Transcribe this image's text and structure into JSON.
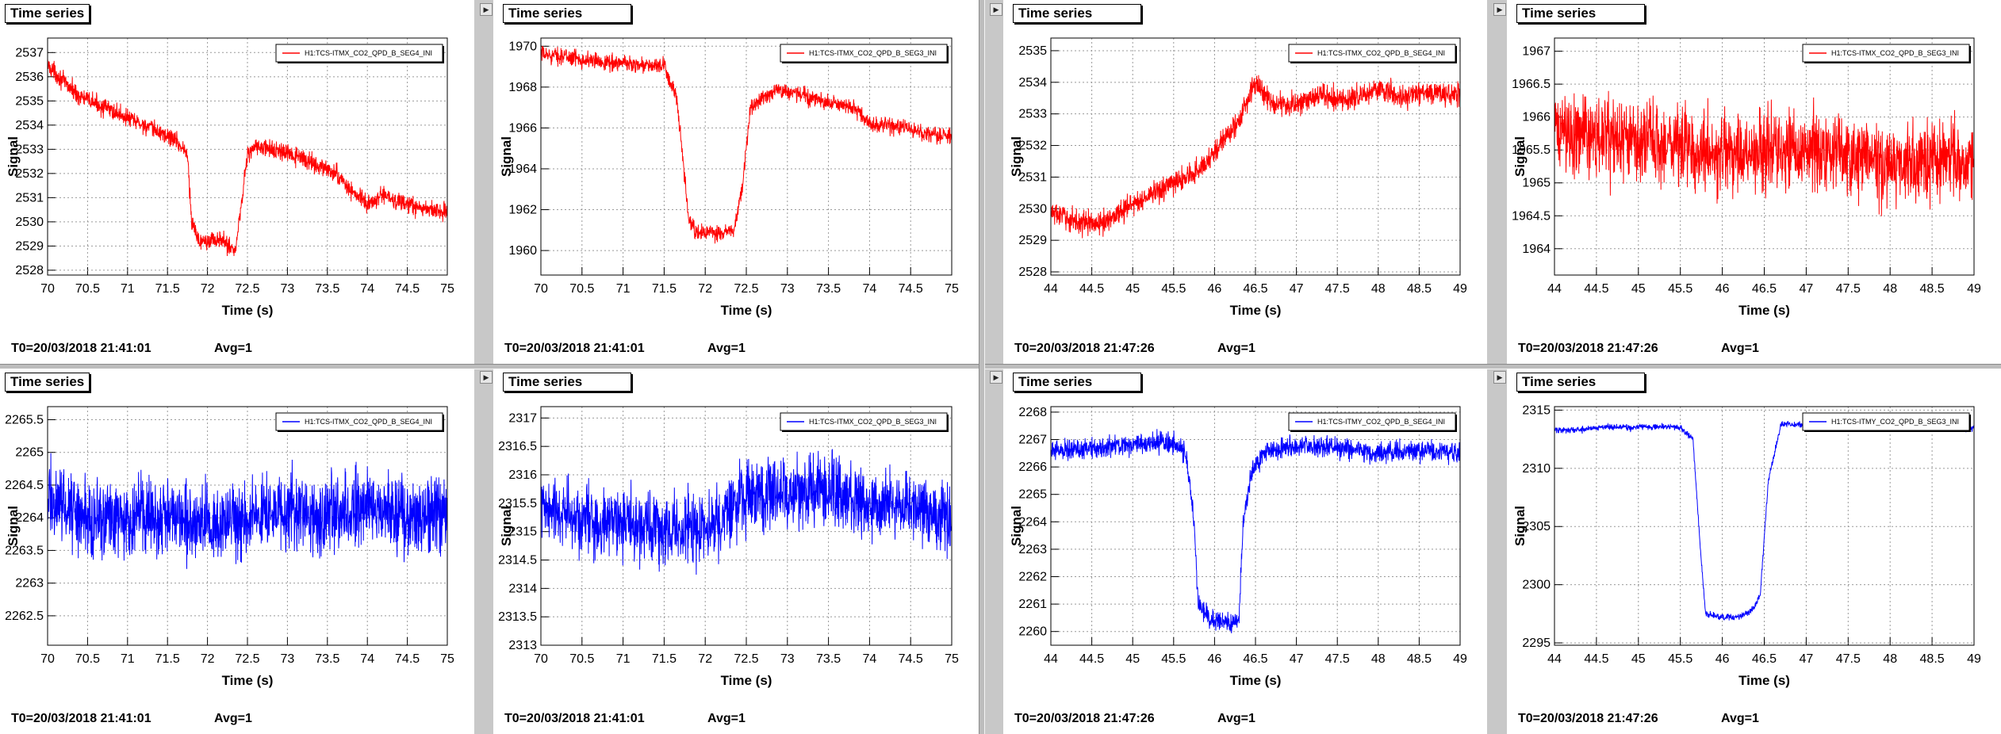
{
  "panel_title": "Time series",
  "colors": {
    "red": "#ff0000",
    "blue": "#0000ff"
  },
  "icons": {
    "expand": "triangle-right-icon"
  },
  "chart_data": [
    {
      "type": "line",
      "title": "Time series",
      "color": "#ff0000",
      "legend": "H1:TCS-ITMX_CO2_QPD_B_SEG4_INI",
      "xlabel": "Time (s)",
      "ylabel": "Signal",
      "xlim": [
        70,
        75
      ],
      "ylim": [
        2527.8,
        2537.6
      ],
      "xticks": [
        "70",
        "70.5",
        "71",
        "71.5",
        "72",
        "72.5",
        "73",
        "73.5",
        "74",
        "74.5",
        "75"
      ],
      "yticks": [
        "2528",
        "2529",
        "2530",
        "2531",
        "2532",
        "2533",
        "2534",
        "2535",
        "2536",
        "2537"
      ],
      "t0": "T0=20/03/2018 21:41:01",
      "avg": "Avg=1",
      "series": [
        {
          "x": [
            70,
            70.2,
            70.4,
            70.6,
            70.8,
            71,
            71.2,
            71.4,
            71.6,
            71.75,
            71.8,
            71.9,
            72,
            72.2,
            72.35,
            72.45,
            72.5,
            72.6,
            72.8,
            73,
            73.2,
            73.4,
            73.6,
            73.8,
            74,
            74.2,
            74.4,
            74.6,
            74.8,
            75
          ],
          "y": [
            2536.5,
            2535.8,
            2535.2,
            2534.9,
            2534.6,
            2534.3,
            2534.0,
            2533.7,
            2533.4,
            2532.8,
            2530,
            2529.2,
            2529.3,
            2529.2,
            2528.8,
            2531.5,
            2532.8,
            2533.1,
            2533.0,
            2532.8,
            2532.6,
            2532.3,
            2532.0,
            2531.3,
            2530.7,
            2531.1,
            2530.8,
            2530.6,
            2530.5,
            2530.4
          ],
          "noise": 0.55
        }
      ]
    },
    {
      "type": "line",
      "title": "Time series",
      "color": "#ff0000",
      "legend": "H1:TCS-ITMX_CO2_QPD_B_SEG3_INI",
      "xlabel": "Time (s)",
      "ylabel": "Signal",
      "xlim": [
        70,
        75
      ],
      "ylim": [
        1958.8,
        1970.4
      ],
      "xticks": [
        "70",
        "70.5",
        "71",
        "71.5",
        "72",
        "72.5",
        "73",
        "73.5",
        "74",
        "74.5",
        "75"
      ],
      "yticks": [
        "1960",
        "1962",
        "1964",
        "1966",
        "1968",
        "1970"
      ],
      "t0": "T0=20/03/2018 21:41:01",
      "avg": "Avg=1",
      "series": [
        {
          "x": [
            70,
            70.3,
            70.6,
            70.9,
            71.2,
            71.5,
            71.65,
            71.8,
            71.9,
            72,
            72.2,
            72.35,
            72.45,
            72.55,
            72.7,
            72.9,
            73.2,
            73.5,
            73.8,
            74,
            74.3,
            74.6,
            75
          ],
          "y": [
            1969.6,
            1969.5,
            1969.3,
            1969.2,
            1969.1,
            1969.0,
            1967.5,
            1961.5,
            1960.8,
            1960.9,
            1960.8,
            1961,
            1963,
            1967.0,
            1967.5,
            1967.9,
            1967.6,
            1967.2,
            1967.0,
            1966.2,
            1966.1,
            1965.8,
            1965.6
          ],
          "noise": 0.6
        }
      ]
    },
    {
      "type": "line",
      "title": "Time series",
      "color": "#ff0000",
      "legend": "H1:TCS-ITMX_CO2_QPD_B_SEG4_INI",
      "xlabel": "Time (s)",
      "ylabel": "Signal",
      "xlim": [
        44,
        49
      ],
      "ylim": [
        2527.9,
        2535.4
      ],
      "xticks": [
        "44",
        "44.5",
        "45",
        "45.5",
        "46",
        "46.5",
        "47",
        "47.5",
        "48",
        "48.5",
        "49"
      ],
      "yticks": [
        "2528",
        "2529",
        "2530",
        "2531",
        "2532",
        "2533",
        "2534",
        "2535"
      ],
      "t0": "T0=20/03/2018 21:47:26",
      "avg": "Avg=1",
      "series": [
        {
          "x": [
            44,
            44.3,
            44.6,
            44.9,
            45.2,
            45.5,
            45.8,
            46,
            46.3,
            46.5,
            46.7,
            47,
            47.3,
            47.6,
            48,
            48.3,
            48.6,
            49
          ],
          "y": [
            2529.9,
            2529.6,
            2529.5,
            2530.0,
            2530.4,
            2530.8,
            2531.2,
            2531.8,
            2532.8,
            2534.0,
            2533.3,
            2533.3,
            2533.6,
            2533.4,
            2533.8,
            2533.5,
            2533.7,
            2533.6
          ],
          "noise": 0.55
        }
      ]
    },
    {
      "type": "line",
      "title": "Time series",
      "color": "#ff0000",
      "legend": "H1:TCS-ITMX_CO2_QPD_B_SEG3_INI",
      "xlabel": "Time (s)",
      "ylabel": "Signal",
      "xlim": [
        44,
        49
      ],
      "ylim": [
        1963.6,
        1967.2
      ],
      "xticks": [
        "44",
        "44.5",
        "45",
        "45.5",
        "46",
        "46.5",
        "47",
        "47.5",
        "48",
        "48.5",
        "49"
      ],
      "yticks": [
        "1964",
        "1964.5",
        "1965",
        "1965.5",
        "1966",
        "1966.5",
        "1967"
      ],
      "t0": "T0=20/03/2018 21:47:26",
      "avg": "Avg=1",
      "series": [
        {
          "x": [
            44,
            44.5,
            45,
            45.5,
            46,
            46.5,
            47,
            47.5,
            48,
            48.5,
            49
          ],
          "y": [
            1965.8,
            1965.7,
            1965.6,
            1965.6,
            1965.4,
            1965.5,
            1965.5,
            1965.4,
            1965.3,
            1965.4,
            1965.3
          ],
          "noise": 0.9
        }
      ]
    },
    {
      "type": "line",
      "title": "Time series",
      "color": "#0000ff",
      "legend": "H1:TCS-ITMX_CO2_QPD_B_SEG4_INI",
      "xlabel": "Time (s)",
      "ylabel": "Signal",
      "xlim": [
        70,
        75
      ],
      "ylim": [
        2262.05,
        2265.7
      ],
      "xticks": [
        "70",
        "70.5",
        "71",
        "71.5",
        "72",
        "72.5",
        "73",
        "73.5",
        "74",
        "74.5",
        "75"
      ],
      "yticks": [
        "2262.5",
        "2263",
        "2263.5",
        "2264",
        "2264.5",
        "2265",
        "2265.5"
      ],
      "t0": "T0=20/03/2018 21:41:01",
      "avg": "Avg=1",
      "series": [
        {
          "x": [
            70,
            70.5,
            71,
            71.5,
            72,
            72.5,
            73,
            73.5,
            74,
            74.5,
            75
          ],
          "y": [
            2264.3,
            2264.0,
            2264.0,
            2264.1,
            2263.9,
            2264.0,
            2264.1,
            2264.0,
            2264.2,
            2264.0,
            2264.1
          ],
          "noise": 0.85
        }
      ]
    },
    {
      "type": "line",
      "title": "Time series",
      "color": "#0000ff",
      "legend": "H1:TCS-ITMX_CO2_QPD_B_SEG3_INI",
      "xlabel": "Time (s)",
      "ylabel": "Signal",
      "xlim": [
        70,
        75
      ],
      "ylim": [
        2313,
        2317.2
      ],
      "xticks": [
        "70",
        "70.5",
        "71",
        "71.5",
        "72",
        "72.5",
        "73",
        "73.5",
        "74",
        "74.5",
        "75"
      ],
      "yticks": [
        "2313",
        "2313.5",
        "2314",
        "2314.5",
        "2315",
        "2315.5",
        "2316",
        "2316.5",
        "2317"
      ],
      "t0": "T0=20/03/2018 21:41:01",
      "avg": "Avg=1",
      "series": [
        {
          "x": [
            70,
            70.5,
            71,
            71.5,
            72,
            72.5,
            73,
            73.5,
            74,
            74.5,
            75
          ],
          "y": [
            2315.4,
            2315.2,
            2315.2,
            2315.0,
            2315.0,
            2315.6,
            2315.7,
            2315.7,
            2315.5,
            2315.4,
            2315.2
          ],
          "noise": 0.9
        }
      ]
    },
    {
      "type": "line",
      "title": "Time series",
      "color": "#0000ff",
      "legend": "H1:TCS-ITMY_CO2_QPD_B_SEG4_INI",
      "xlabel": "Time (s)",
      "ylabel": "Signal",
      "xlim": [
        44,
        49
      ],
      "ylim": [
        2259.5,
        2268.2
      ],
      "xticks": [
        "44",
        "44.5",
        "45",
        "45.5",
        "46",
        "46.5",
        "47",
        "47.5",
        "48",
        "48.5",
        "49"
      ],
      "yticks": [
        "2260",
        "2261",
        "2262",
        "2263",
        "2264",
        "2265",
        "2266",
        "2267",
        "2268"
      ],
      "t0": "T0=20/03/2018 21:47:26",
      "avg": "Avg=1",
      "series": [
        {
          "x": [
            44,
            44.5,
            45,
            45.5,
            45.65,
            45.75,
            45.8,
            46,
            46.2,
            46.3,
            46.35,
            46.45,
            46.6,
            47,
            47.5,
            48,
            48.5,
            49
          ],
          "y": [
            2266.6,
            2266.7,
            2266.8,
            2266.9,
            2266.5,
            2264,
            2261,
            2260.3,
            2260.3,
            2260.5,
            2264,
            2265.8,
            2266.5,
            2266.8,
            2266.7,
            2266.5,
            2266.6,
            2266.5
          ],
          "noise": 0.55
        }
      ]
    },
    {
      "type": "line",
      "title": "Time series",
      "color": "#0000ff",
      "legend": "H1:TCS-ITMY_CO2_QPD_B_SEG3_INI",
      "xlabel": "Time (s)",
      "ylabel": "Signal",
      "xlim": [
        44,
        49
      ],
      "ylim": [
        2294.8,
        2315.3
      ],
      "xticks": [
        "44",
        "44.5",
        "45",
        "45.5",
        "46",
        "46.5",
        "47",
        "47.5",
        "48",
        "48.5",
        "49"
      ],
      "yticks": [
        "2295",
        "2300",
        "2305",
        "2310",
        "2315"
      ],
      "t0": "T0=20/03/2018 21:47:26",
      "avg": "Avg=1",
      "series": [
        {
          "x": [
            44,
            44.3,
            44.6,
            44.9,
            45.2,
            45.5,
            45.65,
            45.75,
            45.8,
            46,
            46.2,
            46.35,
            46.45,
            46.55,
            46.7,
            47,
            47.5,
            48,
            48.5,
            49
          ],
          "y": [
            2313.3,
            2313.3,
            2313.6,
            2313.5,
            2313.6,
            2313.5,
            2312.5,
            2302,
            2297.5,
            2297.2,
            2297.2,
            2297.8,
            2299,
            2309,
            2313.8,
            2313.7,
            2313.4,
            2313.5,
            2313.6,
            2313.4
          ],
          "noise": 0.4
        }
      ]
    }
  ]
}
